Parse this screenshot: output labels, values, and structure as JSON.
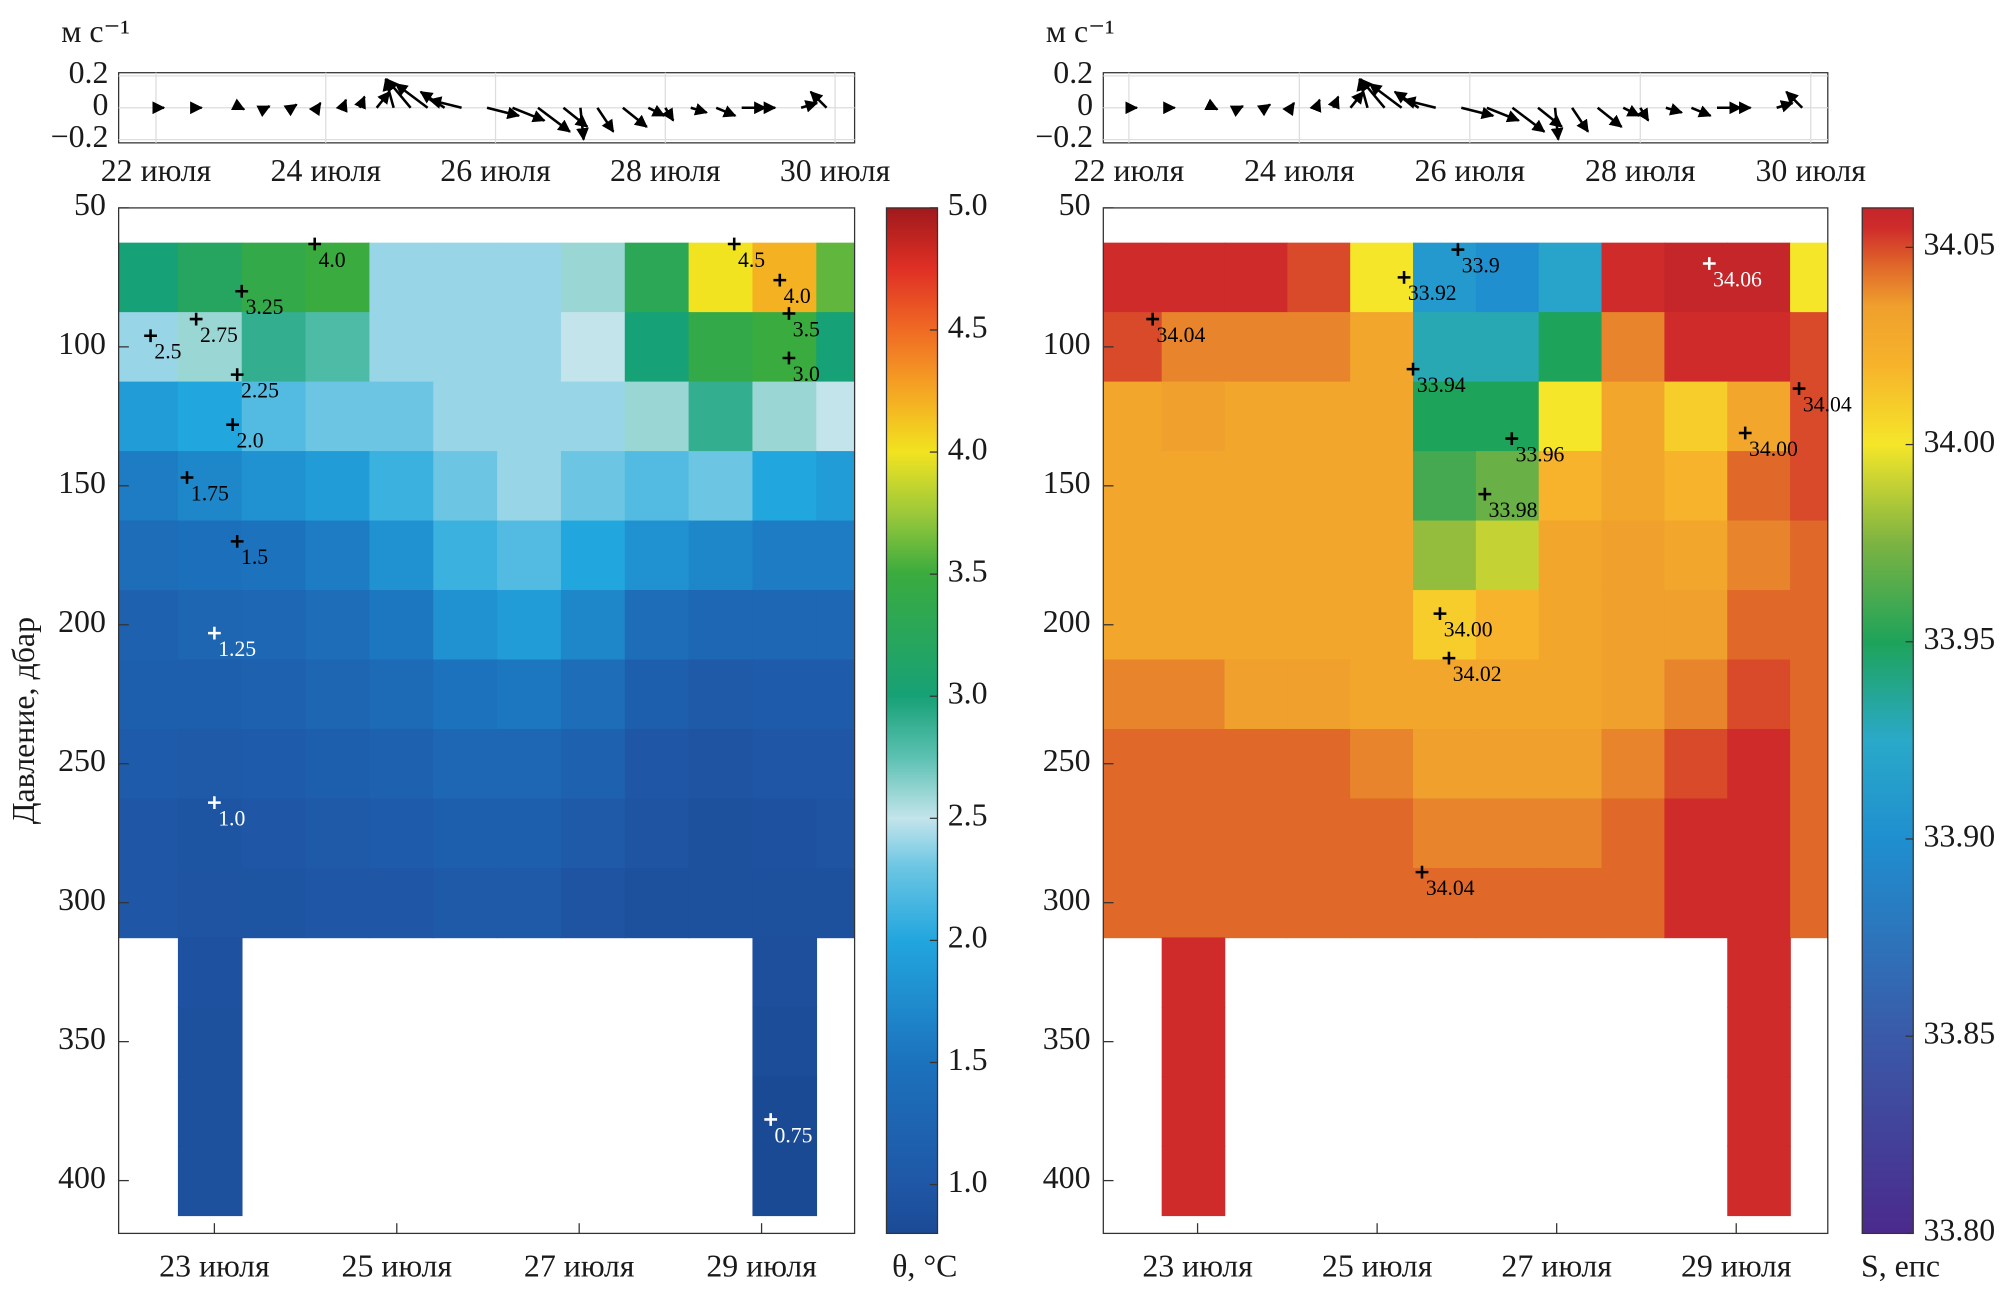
{
  "chart_data": [
    {
      "type": "quiver",
      "ylabel": "м с⁻¹",
      "color": "#000000",
      "xlim": [
        21.56,
        30.23
      ],
      "ylim": [
        -0.22,
        0.22
      ],
      "xticks": [
        {
          "value": 22,
          "label": "22 июля"
        },
        {
          "value": 24,
          "label": "24 июля"
        },
        {
          "value": 26,
          "label": "26 июля"
        },
        {
          "value": 28,
          "label": "28 июля"
        },
        {
          "value": 30,
          "label": "30 июля"
        }
      ],
      "yticks": [
        {
          "value": -0.2,
          "label": "−0.2"
        },
        0,
        0.2
      ],
      "grid": true,
      "x": [
        22.0,
        22.5,
        23.0,
        23.3,
        23.6,
        23.9,
        24.2,
        24.4,
        24.6,
        24.8,
        25.0,
        25.2,
        25.4,
        25.6,
        25.9,
        26.2,
        26.5,
        26.8,
        27.0,
        27.2,
        27.5,
        27.8,
        28.0,
        28.3,
        28.6,
        28.9,
        29.2,
        29.6,
        29.9
      ],
      "u": [
        0.05,
        0.02,
        0.02,
        0.02,
        0.03,
        0.02,
        0.02,
        0.03,
        0.08,
        -0.05,
        -0.15,
        -0.2,
        -0.15,
        -0.2,
        0.2,
        0.2,
        0.2,
        0.15,
        0.02,
        0.1,
        0.15,
        0.1,
        0.05,
        0.1,
        0.12,
        0.15,
        0.05,
        0.1,
        -0.1
      ],
      "v": [
        0.0,
        0.0,
        -0.01,
        0.01,
        0.02,
        0.03,
        0.05,
        0.07,
        0.1,
        0.18,
        0.18,
        0.15,
        0.1,
        0.05,
        -0.05,
        -0.08,
        -0.15,
        -0.12,
        -0.2,
        -0.15,
        -0.12,
        -0.05,
        -0.08,
        -0.03,
        -0.05,
        0.0,
        0.0,
        0.03,
        0.1
      ]
    },
    {
      "type": "contour",
      "ylabel": "Давление, дбар",
      "xlim": [
        21.95,
        30.02
      ],
      "ylim": [
        50,
        419
      ],
      "xticks": [
        {
          "value": 23,
          "label": "23 июля"
        },
        {
          "value": 25,
          "label": "25 июля"
        },
        {
          "value": 27,
          "label": "27 июля"
        },
        {
          "value": 29,
          "label": "29 июля"
        }
      ],
      "yticks": [
        50,
        100,
        150,
        200,
        250,
        300,
        350,
        400
      ],
      "grid": true,
      "x": [
        22.25,
        22.95,
        23.65,
        24.35,
        25.05,
        25.75,
        26.45,
        27.15,
        27.85,
        28.55,
        29.25,
        29.95
      ],
      "y": [
        75,
        100,
        125,
        150,
        175,
        200,
        225,
        250,
        275,
        300,
        325,
        350,
        375,
        400
      ],
      "z": [
        [
          3.0,
          3.2,
          3.4,
          3.5,
          2.4,
          2.4,
          2.4,
          2.6,
          3.3,
          4.0,
          4.2,
          3.6
        ],
        [
          2.4,
          2.6,
          2.9,
          2.8,
          2.4,
          2.4,
          2.4,
          2.5,
          3.0,
          3.4,
          3.5,
          3.0
        ],
        [
          1.9,
          2.0,
          2.2,
          2.3,
          2.3,
          2.4,
          2.4,
          2.4,
          2.6,
          2.9,
          2.6,
          2.5
        ],
        [
          1.6,
          1.7,
          1.8,
          1.9,
          2.1,
          2.3,
          2.4,
          2.3,
          2.2,
          2.3,
          2.0,
          1.9
        ],
        [
          1.4,
          1.45,
          1.5,
          1.6,
          1.8,
          2.1,
          2.2,
          2.0,
          1.8,
          1.7,
          1.6,
          1.6
        ],
        [
          1.2,
          1.25,
          1.3,
          1.4,
          1.55,
          1.8,
          1.9,
          1.7,
          1.4,
          1.3,
          1.3,
          1.3
        ],
        [
          1.15,
          1.15,
          1.2,
          1.25,
          1.35,
          1.5,
          1.55,
          1.4,
          1.15,
          1.05,
          1.1,
          1.1
        ],
        [
          1.1,
          1.05,
          1.1,
          1.15,
          1.2,
          1.3,
          1.3,
          1.2,
          1.0,
          0.95,
          1.0,
          1.0
        ],
        [
          1.0,
          0.97,
          1.0,
          1.05,
          1.1,
          1.15,
          1.15,
          1.05,
          0.95,
          0.9,
          0.93,
          0.95
        ],
        [
          1.0,
          0.95,
          0.97,
          1.0,
          1.0,
          1.05,
          1.05,
          0.95,
          0.9,
          0.9,
          0.9,
          0.9
        ],
        [
          null,
          0.93,
          null,
          null,
          null,
          null,
          null,
          null,
          null,
          null,
          0.88,
          null
        ],
        [
          null,
          0.9,
          null,
          null,
          null,
          null,
          null,
          null,
          null,
          null,
          0.85,
          null
        ],
        [
          null,
          0.9,
          null,
          null,
          null,
          null,
          null,
          null,
          null,
          null,
          0.8,
          null
        ],
        [
          null,
          0.9,
          null,
          null,
          null,
          null,
          null,
          null,
          null,
          null,
          0.8,
          null
        ]
      ],
      "colorbar": {
        "label": "θ, °C",
        "lim": [
          0.8,
          5.0
        ],
        "ticks": [
          {
            "value": 1.0,
            "label": "1.0"
          },
          1.5,
          {
            "value": 2.0,
            "label": "2.0"
          },
          2.5,
          {
            "value": 3.0,
            "label": "3.0"
          },
          3.5,
          {
            "value": 4.0,
            "label": "4.0"
          },
          4.5,
          {
            "value": 5.0,
            "label": "5.0"
          }
        ],
        "colorscale": [
          [
            0.8,
            "#1b4a95"
          ],
          [
            1.0,
            "#1f57a6"
          ],
          [
            1.5,
            "#1c72bd"
          ],
          [
            2.0,
            "#22a6de"
          ],
          [
            2.3,
            "#6cc6e3"
          ],
          [
            2.5,
            "#c3e4eb"
          ],
          [
            2.75,
            "#5cc1b2"
          ],
          [
            3.0,
            "#17a176"
          ],
          [
            3.5,
            "#3aab3f"
          ],
          [
            3.75,
            "#9cc93a"
          ],
          [
            4.0,
            "#f2e320"
          ],
          [
            4.25,
            "#f5a623"
          ],
          [
            4.5,
            "#f06a24"
          ],
          [
            4.75,
            "#e03025"
          ],
          [
            5.0,
            "#a0191c"
          ]
        ]
      },
      "annotations": [
        {
          "text": "4.0",
          "x": 24.1,
          "y": 63,
          "color": "#000000"
        },
        {
          "text": "3.25",
          "x": 23.3,
          "y": 80,
          "color": "#000000"
        },
        {
          "text": "2.75",
          "x": 22.8,
          "y": 90,
          "color": "#000000"
        },
        {
          "text": "2.5",
          "x": 22.3,
          "y": 96,
          "color": "#000000"
        },
        {
          "text": "2.25",
          "x": 23.25,
          "y": 110,
          "color": "#000000"
        },
        {
          "text": "2.0",
          "x": 23.2,
          "y": 128,
          "color": "#000000"
        },
        {
          "text": "1.75",
          "x": 22.7,
          "y": 147,
          "color": "#000000"
        },
        {
          "text": "1.5",
          "x": 23.25,
          "y": 170,
          "color": "#000000"
        },
        {
          "text": "1.25",
          "x": 23.0,
          "y": 203,
          "color": "#ffffff"
        },
        {
          "text": "1.0",
          "x": 23.0,
          "y": 264,
          "color": "#ffffff"
        },
        {
          "text": "4.5",
          "x": 28.7,
          "y": 63,
          "color": "#000000"
        },
        {
          "text": "4.0",
          "x": 29.2,
          "y": 76,
          "color": "#000000"
        },
        {
          "text": "3.5",
          "x": 29.3,
          "y": 88,
          "color": "#000000"
        },
        {
          "text": "3.0",
          "x": 29.3,
          "y": 104,
          "color": "#000000"
        },
        {
          "text": "0.75",
          "x": 29.1,
          "y": 378,
          "color": "#ffffff"
        }
      ]
    },
    {
      "type": "quiver",
      "ylabel": "м с⁻¹",
      "color": "#000000",
      "xlim": [
        21.7,
        30.2
      ],
      "ylim": [
        -0.22,
        0.22
      ],
      "xticks": [
        {
          "value": 22,
          "label": "22 июля"
        },
        {
          "value": 24,
          "label": "24 июля"
        },
        {
          "value": 26,
          "label": "26 июля"
        },
        {
          "value": 28,
          "label": "28 июля"
        },
        {
          "value": 30,
          "label": "30 июля"
        }
      ],
      "yticks": [
        {
          "value": -0.2,
          "label": "−0.2"
        },
        0,
        0.2
      ],
      "grid": true,
      "x": [
        22.0,
        22.5,
        23.0,
        23.3,
        23.6,
        23.9,
        24.2,
        24.4,
        24.6,
        24.8,
        25.0,
        25.2,
        25.4,
        25.6,
        25.9,
        26.2,
        26.5,
        26.8,
        27.0,
        27.2,
        27.5,
        27.8,
        28.0,
        28.3,
        28.6,
        28.9,
        29.2,
        29.6,
        29.9
      ],
      "u": [
        0.05,
        0.02,
        0.02,
        0.02,
        0.03,
        0.02,
        0.02,
        0.03,
        0.08,
        -0.05,
        -0.15,
        -0.2,
        -0.15,
        -0.2,
        0.2,
        0.2,
        0.2,
        0.15,
        0.02,
        0.1,
        0.15,
        0.1,
        0.05,
        0.1,
        0.12,
        0.15,
        0.05,
        0.1,
        -0.1
      ],
      "v": [
        0.0,
        0.0,
        -0.01,
        0.01,
        0.02,
        0.03,
        0.05,
        0.07,
        0.1,
        0.18,
        0.18,
        0.15,
        0.1,
        0.05,
        -0.05,
        -0.08,
        -0.15,
        -0.12,
        -0.2,
        -0.15,
        -0.12,
        -0.05,
        -0.08,
        -0.03,
        -0.05,
        0.0,
        0.0,
        0.03,
        0.1
      ]
    },
    {
      "type": "contour",
      "xlim": [
        21.95,
        30.02
      ],
      "ylim": [
        50,
        419
      ],
      "xticks": [
        {
          "value": 23,
          "label": "23 июля"
        },
        {
          "value": 25,
          "label": "25 июля"
        },
        {
          "value": 27,
          "label": "27 июля"
        },
        {
          "value": 29,
          "label": "29 июля"
        }
      ],
      "yticks": [
        50,
        100,
        150,
        200,
        250,
        300,
        350,
        400
      ],
      "grid": true,
      "x": [
        22.25,
        22.95,
        23.65,
        24.35,
        25.05,
        25.75,
        26.45,
        27.15,
        27.85,
        28.55,
        29.25,
        29.95
      ],
      "y": [
        75,
        100,
        125,
        150,
        175,
        200,
        225,
        250,
        275,
        300,
        325,
        350,
        375,
        400
      ],
      "z": [
        [
          34.055,
          34.055,
          34.055,
          34.05,
          34.0,
          33.91,
          33.9,
          33.92,
          34.055,
          34.06,
          34.06,
          34.0
        ],
        [
          34.05,
          34.04,
          34.04,
          34.04,
          34.03,
          33.93,
          33.93,
          33.95,
          34.04,
          34.055,
          34.055,
          34.05
        ],
        [
          34.03,
          34.035,
          34.03,
          34.03,
          34.03,
          33.95,
          33.95,
          34.0,
          34.03,
          34.01,
          34.03,
          34.05
        ],
        [
          34.03,
          34.03,
          34.03,
          34.03,
          34.03,
          33.96,
          33.97,
          34.02,
          34.03,
          34.02,
          34.045,
          34.05
        ],
        [
          34.03,
          34.03,
          34.03,
          34.03,
          34.03,
          33.98,
          33.99,
          34.03,
          34.035,
          34.03,
          34.04,
          34.045
        ],
        [
          34.03,
          34.03,
          34.03,
          34.03,
          34.03,
          34.01,
          34.02,
          34.03,
          34.035,
          34.035,
          34.045,
          34.045
        ],
        [
          34.04,
          34.04,
          34.035,
          34.035,
          34.03,
          34.03,
          34.03,
          34.03,
          34.035,
          34.04,
          34.05,
          34.045
        ],
        [
          34.045,
          34.045,
          34.045,
          34.045,
          34.04,
          34.035,
          34.035,
          34.035,
          34.04,
          34.05,
          34.055,
          34.045
        ],
        [
          34.045,
          34.045,
          34.045,
          34.045,
          34.045,
          34.04,
          34.04,
          34.04,
          34.045,
          34.055,
          34.055,
          34.045
        ],
        [
          34.045,
          34.045,
          34.045,
          34.045,
          34.045,
          34.045,
          34.045,
          34.045,
          34.045,
          34.055,
          34.055,
          34.045
        ],
        [
          null,
          34.055,
          null,
          null,
          null,
          null,
          null,
          null,
          null,
          null,
          34.055,
          null
        ],
        [
          null,
          34.055,
          null,
          null,
          null,
          null,
          null,
          null,
          null,
          null,
          34.055,
          null
        ],
        [
          null,
          34.055,
          null,
          null,
          null,
          null,
          null,
          null,
          null,
          null,
          34.055,
          null
        ],
        [
          null,
          34.055,
          null,
          null,
          null,
          null,
          null,
          null,
          null,
          null,
          34.055,
          null
        ]
      ],
      "colorbar": {
        "label": "S, епс",
        "lim": [
          33.8,
          34.06
        ],
        "ticks": [
          {
            "value": 33.8,
            "label": "33.80"
          },
          33.85,
          {
            "value": 33.9,
            "label": "33.90"
          },
          33.95,
          {
            "value": 34.0,
            "label": "34.00"
          },
          34.05
        ],
        "colorscale": [
          [
            33.8,
            "#4b2a8c"
          ],
          [
            33.85,
            "#3a5aa8"
          ],
          [
            33.9,
            "#1f8fcf"
          ],
          [
            33.925,
            "#2aa9c9"
          ],
          [
            33.95,
            "#1ea35a"
          ],
          [
            33.975,
            "#7cb342"
          ],
          [
            34.0,
            "#f5e62a"
          ],
          [
            34.02,
            "#f7b32b"
          ],
          [
            34.035,
            "#efa02d"
          ],
          [
            34.045,
            "#e0692a"
          ],
          [
            34.055,
            "#cf2b2b"
          ],
          [
            34.06,
            "#c4262a"
          ]
        ]
      },
      "annotations": [
        {
          "text": "33.9",
          "x": 25.9,
          "y": 65,
          "color": "#000000"
        },
        {
          "text": "33.92",
          "x": 25.3,
          "y": 75,
          "color": "#000000"
        },
        {
          "text": "34.04",
          "x": 22.5,
          "y": 90,
          "color": "#000000"
        },
        {
          "text": "33.94",
          "x": 25.4,
          "y": 108,
          "color": "#000000"
        },
        {
          "text": "33.96",
          "x": 26.5,
          "y": 133,
          "color": "#000000"
        },
        {
          "text": "33.98",
          "x": 26.2,
          "y": 153,
          "color": "#000000"
        },
        {
          "text": "34.00",
          "x": 25.7,
          "y": 196,
          "color": "#000000"
        },
        {
          "text": "34.02",
          "x": 25.8,
          "y": 212,
          "color": "#000000"
        },
        {
          "text": "34.04",
          "x": 25.5,
          "y": 289,
          "color": "#000000"
        },
        {
          "text": "34.06",
          "x": 28.7,
          "y": 70,
          "color": "#ffffff"
        },
        {
          "text": "34.04",
          "x": 29.7,
          "y": 115,
          "color": "#000000"
        },
        {
          "text": "34.00",
          "x": 29.1,
          "y": 131,
          "color": "#000000"
        }
      ]
    }
  ]
}
